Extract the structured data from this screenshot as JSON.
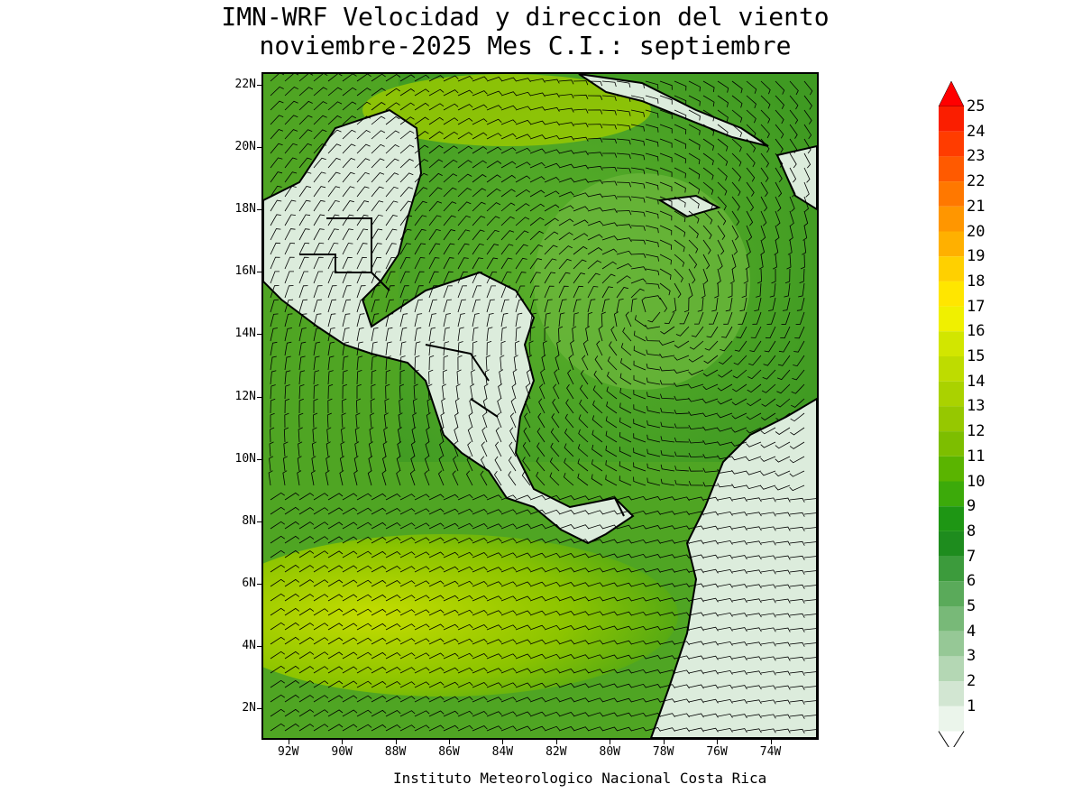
{
  "title": {
    "line1": "IMN-WRF Velocidad y direccion del viento",
    "line2": "noviembre-2025 Mes C.I.: septiembre"
  },
  "credit": "Instituto Meteorologico Nacional Costa Rica",
  "map": {
    "projection": "lat-lon",
    "lon_range": [
      -93.0,
      -72.2
    ],
    "lat_range": [
      1.0,
      22.4
    ],
    "lat_ticks": [
      "22N",
      "20N",
      "18N",
      "16N",
      "14N",
      "12N",
      "10N",
      "8N",
      "6N",
      "4N",
      "2N"
    ],
    "lon_ticks": [
      "92W",
      "90W",
      "88W",
      "86W",
      "84W",
      "82W",
      "80W",
      "78W",
      "76W",
      "74W"
    ],
    "variable": "wind speed and direction (barbs)",
    "colors": {
      "ocean_strong": "#3f9f22",
      "land_weak": "#e6f3e6",
      "coastline": "#000000"
    }
  },
  "legend": {
    "labels": [
      "25",
      "24",
      "23",
      "22",
      "21",
      "20",
      "19",
      "18",
      "17",
      "16",
      "15",
      "14",
      "13",
      "12",
      "11",
      "10",
      "9",
      "8",
      "7",
      "6",
      "5",
      "4",
      "3",
      "2",
      "1"
    ],
    "colors": [
      "#fa1e00",
      "#ff3c00",
      "#ff5a00",
      "#ff7800",
      "#ff9600",
      "#ffb000",
      "#ffd000",
      "#ffe600",
      "#f0f000",
      "#d2e600",
      "#bedc00",
      "#aad200",
      "#96c800",
      "#7dbe00",
      "#5ab400",
      "#3caa0a",
      "#1e9614",
      "#1e8c1e",
      "#3c9b3c",
      "#5aaa5a",
      "#78b978",
      "#96c896",
      "#b4d7b4",
      "#d2e6d2",
      "#ebf5eb"
    ],
    "arrow_color": "#ff0000"
  }
}
